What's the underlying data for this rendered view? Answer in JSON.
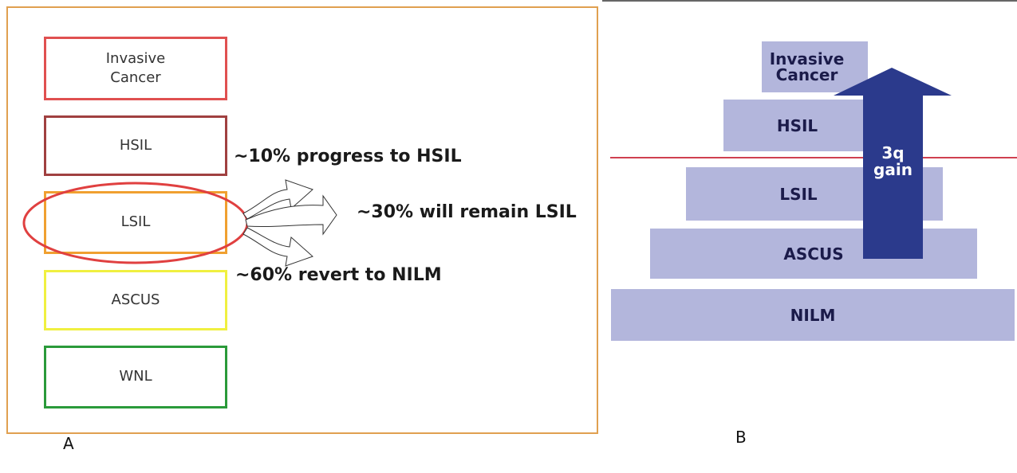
{
  "panel_a": {
    "label": "A",
    "boxes": [
      "Invasive Cancer",
      "HSIL",
      "LSIL",
      "ASCUS",
      "WNL"
    ],
    "annotations": [
      "~10% progress to HSIL",
      "~30% will remain LSIL",
      "~60% revert to NILM"
    ]
  },
  "panel_b": {
    "label": "B",
    "levels": [
      "Invasive Cancer",
      "HSIL",
      "LSIL",
      "ASCUS",
      "NILM"
    ],
    "arrow_label": "3q gain"
  }
}
